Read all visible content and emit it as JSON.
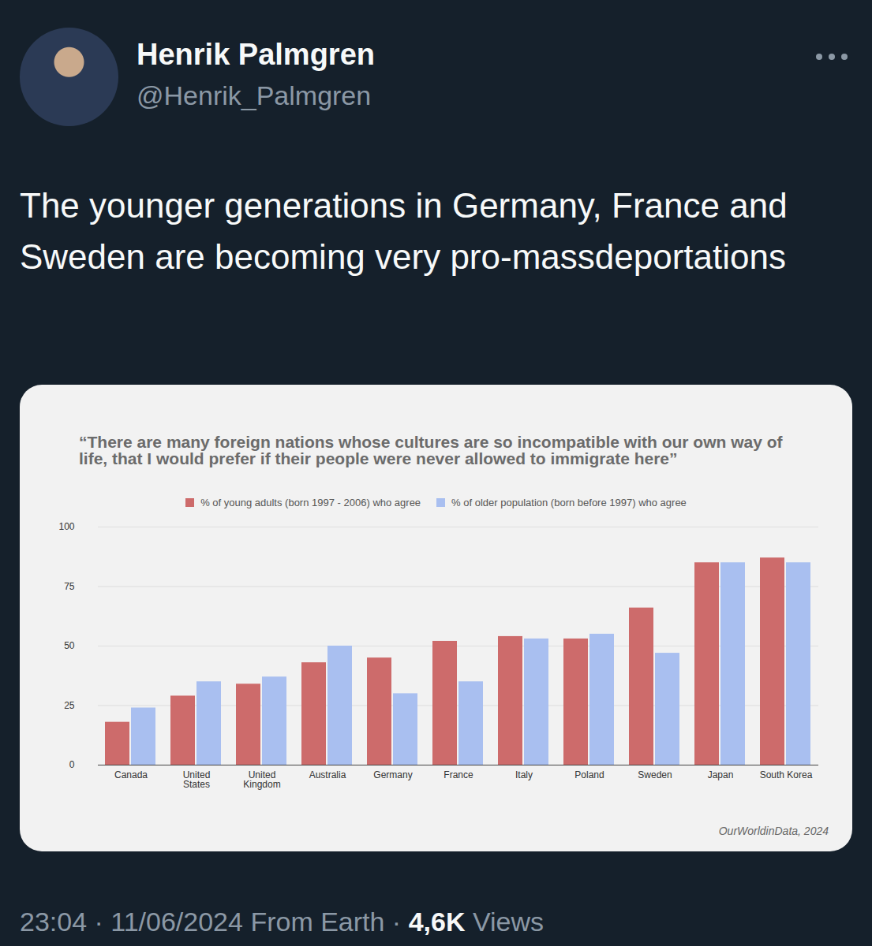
{
  "post": {
    "name": "Henrik Palmgren",
    "handle": "@Henrik_Palmgren",
    "text": "The younger generations in Germany, France and Sweden are becoming very pro-massdeportations",
    "footer": "23:04 · 11/06/2024 From Earth ·",
    "views": "4,6K",
    "views_label": "Views"
  },
  "chart_data": {
    "type": "bar",
    "title": "“There are many foreign nations whose cultures are so incompatible with our own way of life, that I would prefer if their people were never allowed to immigrate here”",
    "categories": [
      "Canada",
      "United States",
      "United Kingdom",
      "Australia",
      "Germany",
      "France",
      "Italy",
      "Poland",
      "Sweden",
      "Japan",
      "South Korea"
    ],
    "series": [
      {
        "name": "% of young adults (born 1997 - 2006) who agree",
        "color": "#cd6b6b",
        "values": [
          18,
          29,
          34,
          43,
          45,
          52,
          54,
          53,
          66,
          85,
          87
        ]
      },
      {
        "name": "% of older population (born before 1997) who agree",
        "color": "#a9bff0",
        "values": [
          24,
          35,
          37,
          50,
          30,
          35,
          53,
          55,
          47,
          85,
          85
        ]
      }
    ],
    "ylim": [
      0,
      100
    ],
    "yticks": [
      0,
      25,
      50,
      75,
      100
    ],
    "grid": true,
    "legend": "top",
    "source": "OurWorldinData, 2024"
  }
}
